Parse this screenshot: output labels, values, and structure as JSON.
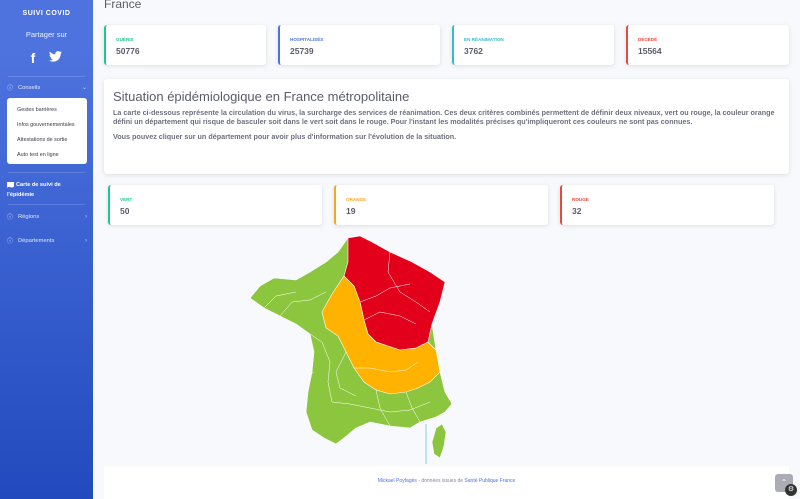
{
  "sidebar": {
    "brand": "SUIVI COVID",
    "share_label": "Partager sur",
    "social": {
      "facebook": "f",
      "twitter": "🐦"
    },
    "conseils": {
      "label": "Conseils",
      "icon": "info-icon"
    },
    "sub_items": [
      {
        "label": "Gestes barrières"
      },
      {
        "label": "Infos gouvernementales"
      },
      {
        "label": "Attestations de sortie"
      },
      {
        "label": "Auto test en ligne"
      }
    ],
    "carte": {
      "label_line1": "Carte de suivi de",
      "label_line2": "l'épidémie",
      "icon": "map-icon"
    },
    "regions": {
      "label": "Régions"
    },
    "departements": {
      "label": "Départements"
    }
  },
  "page_title": "France",
  "stats": [
    {
      "label": "GUÉRIS",
      "value": "50776"
    },
    {
      "label": "HOSPITALISÉS",
      "value": "25739"
    },
    {
      "label": "EN RÉANIMATION",
      "value": "3762"
    },
    {
      "label": "DÉCÉDÉ",
      "value": "15564"
    }
  ],
  "situation": {
    "title": "Situation épidémiologique en France métropolitaine",
    "text": "La carte ci-dessous représente la circulation du virus, la surcharge des services de réanimation. Ces deux critères combinés permettent de définir deux niveaux, vert ou rouge, la couleur orange défini un département qui risque de basculer soit dans le vert soit dans le rouge. Pour l'instant les modalités précises qu'impliqueront ces couleurs ne sont pas connues.",
    "click_text": "Vous pouvez cliquer sur un département pour avoir plus d'information sur l'évolution de la situation."
  },
  "levels": [
    {
      "label": "VERT",
      "value": "50"
    },
    {
      "label": "ORANGE",
      "value": "19"
    },
    {
      "label": "ROUGE",
      "value": "32"
    }
  ],
  "map_colors": {
    "vert": "#8cc63f",
    "orange": "#ffb300",
    "rouge": "#e2001a",
    "border": "#ffffff"
  },
  "footer": {
    "author": "Mickael Poyfagès",
    "separator": " - données issues de ",
    "source": "Santé Publique France"
  },
  "scroll_top_icon": "chevron-up-icon"
}
